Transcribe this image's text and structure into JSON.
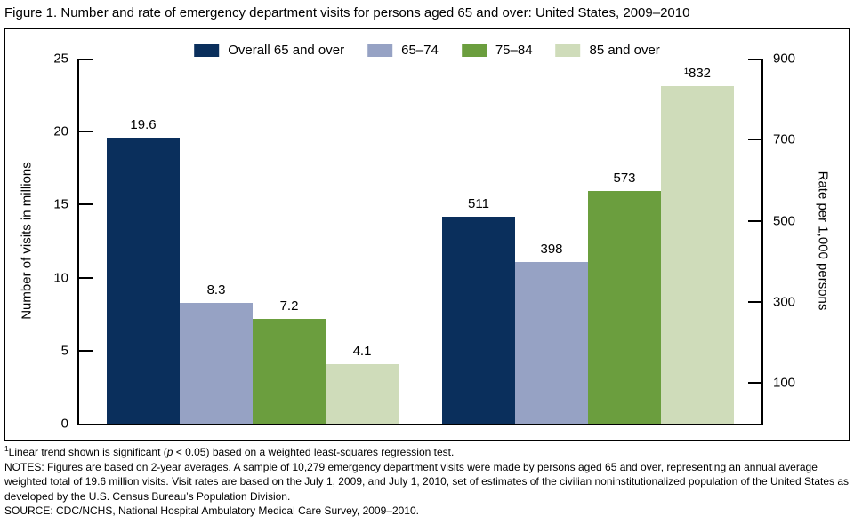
{
  "title": "Figure 1. Number and rate of emergency department visits for persons aged 65 and over: United States, 2009–2010",
  "chart_data": {
    "type": "bar",
    "title": "Figure 1. Number and rate of emergency department visits for persons aged 65 and over: United States, 2009–2010",
    "series_names": [
      "Overall 65 and over",
      "65–74",
      "75–84",
      "85 and over"
    ],
    "colors": [
      "#0a2f5c",
      "#96a2c4",
      "#6b9e3e",
      "#cfdcba"
    ],
    "groups": [
      {
        "name": "number-of-visits",
        "axis": "left",
        "values": [
          19.6,
          8.3,
          7.2,
          4.1
        ],
        "value_labels": [
          "19.6",
          "8.3",
          "7.2",
          "4.1"
        ]
      },
      {
        "name": "rate-per-1000",
        "axis": "right",
        "values": [
          511,
          398,
          573,
          832
        ],
        "value_labels": [
          "511",
          "398",
          "573",
          "¹832"
        ]
      }
    ],
    "left_axis": {
      "label": "Number of visits in millions",
      "min": 0,
      "max": 25,
      "ticks": [
        0,
        5,
        10,
        15,
        20,
        25
      ]
    },
    "right_axis": {
      "label": "Rate per 1,000 persons",
      "min": 0,
      "max": 900,
      "ticks": [
        100,
        300,
        500,
        700,
        900
      ]
    },
    "legend_position": "top",
    "grid": false
  },
  "footnotes": {
    "fn1_sup": "1",
    "fn1_pre": "Linear trend shown is significant (",
    "fn1_p": "p",
    "fn1_post": " < 0.05) based on a weighted least-squares regression test.",
    "notes": "NOTES: Figures are based on 2-year averages. A sample of 10,279 emergency department visits were made by persons aged 65 and over, representing an annual average weighted total of 19.6 million visits. Visit rates are based on the July 1, 2009, and July 1, 2010, set of estimates of the civilian noninstitutionalized population of the United States as developed by the U.S. Census Bureau’s Population Division.",
    "source": "SOURCE: CDC/NCHS, National Hospital Ambulatory Medical Care Survey, 2009–2010."
  }
}
